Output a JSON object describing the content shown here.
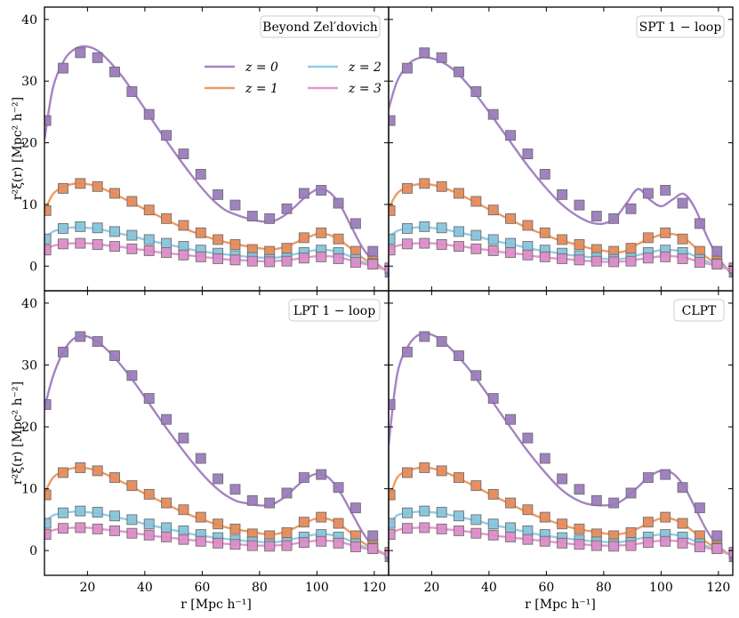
{
  "chart_data": {
    "type": "line",
    "layout": "2x2 panels with shared axes",
    "xlabel": "r [Mpc h⁻¹]",
    "ylabel": "r²ξ(r)  [Mpc² h⁻²]",
    "xlim": [
      5,
      125
    ],
    "ylim": [
      -4,
      42
    ],
    "xticks": [
      20,
      40,
      60,
      80,
      100,
      120
    ],
    "yticks": [
      0,
      10,
      20,
      30,
      40
    ],
    "legend": {
      "location": "upper-right of first panel",
      "ncol": 2,
      "entries": [
        {
          "label": "z = 0",
          "color": "#a582c4"
        },
        {
          "label": "z = 1",
          "color": "#ee9b62"
        },
        {
          "label": "z = 2",
          "color": "#91cde5"
        },
        {
          "label": "z = 3",
          "color": "#e297cf"
        }
      ]
    },
    "series_colors": [
      "#a582c4",
      "#ee9b62",
      "#91cde5",
      "#e297cf"
    ],
    "marker_colors": [
      "#9b7bbd",
      "#e58b5b",
      "#86c4dd",
      "#dd8cc8"
    ],
    "data_points": {
      "x": [
        5.5,
        11.5,
        17.5,
        23.5,
        29.5,
        35.5,
        41.5,
        47.5,
        53.5,
        59.5,
        65.5,
        71.5,
        77.5,
        83.5,
        89.5,
        95.5,
        101.5,
        107.5,
        113.5,
        119.5,
        125.5
      ],
      "series": [
        {
          "name": "z = 0",
          "y": [
            23.6,
            32.1,
            34.6,
            33.8,
            31.5,
            28.3,
            24.6,
            21.2,
            18.2,
            14.9,
            11.6,
            9.9,
            8.1,
            7.7,
            9.3,
            11.8,
            12.3,
            10.2,
            6.9,
            2.4,
            -1.0
          ]
        },
        {
          "name": "z = 1",
          "y": [
            9.0,
            12.6,
            13.4,
            12.9,
            11.8,
            10.5,
            9.1,
            7.7,
            6.6,
            5.4,
            4.3,
            3.5,
            2.7,
            2.4,
            2.9,
            4.6,
            5.4,
            4.4,
            2.4,
            0.8,
            -0.3
          ]
        },
        {
          "name": "z = 2",
          "y": [
            4.4,
            6.1,
            6.4,
            6.2,
            5.6,
            5.0,
            4.3,
            3.7,
            3.2,
            2.6,
            2.1,
            1.7,
            1.4,
            1.1,
            1.3,
            2.2,
            2.6,
            2.2,
            1.1,
            0.4,
            -0.3
          ]
        },
        {
          "name": "z = 3",
          "y": [
            2.6,
            3.6,
            3.7,
            3.5,
            3.2,
            2.8,
            2.5,
            2.2,
            1.8,
            1.5,
            1.2,
            1.0,
            0.8,
            0.7,
            0.8,
            1.3,
            1.5,
            1.2,
            0.6,
            0.3,
            -0.3
          ]
        }
      ]
    },
    "panels": [
      {
        "label": "Beyond Zel′dovich",
        "model_x": [
          5,
          8,
          12,
          16,
          20,
          24,
          28,
          32,
          36,
          40,
          44,
          48,
          52,
          56,
          60,
          64,
          68,
          72,
          76,
          80,
          84,
          88,
          92,
          96,
          100,
          104,
          108,
          112,
          116,
          120,
          125
        ],
        "model_series": [
          {
            "name": "z = 0",
            "y": [
              20.5,
              29.0,
              33.5,
              35.3,
              35.6,
              34.8,
              33.0,
              30.8,
              28.2,
              25.5,
              22.7,
              20.0,
              17.4,
              14.9,
              12.6,
              10.6,
              9.1,
              8.3,
              7.7,
              7.3,
              7.2,
              8.0,
              9.5,
              11.2,
              12.4,
              12.1,
              10.0,
              6.4,
              2.9,
              0.7,
              -1.0
            ]
          },
          {
            "name": "z = 1",
            "y": [
              8.8,
              11.7,
              12.9,
              13.4,
              13.3,
              12.8,
              12.0,
              11.1,
              10.2,
              9.2,
              8.3,
              7.4,
              6.5,
              5.7,
              5.0,
              4.4,
              3.9,
              3.5,
              3.2,
              2.9,
              2.7,
              3.0,
              3.7,
              4.5,
              5.2,
              5.1,
              4.2,
              2.8,
              1.3,
              0.3,
              -0.8
            ]
          },
          {
            "name": "z = 2",
            "y": [
              4.4,
              5.6,
              6.1,
              6.3,
              6.2,
              6.0,
              5.6,
              5.2,
              4.8,
              4.3,
              3.9,
              3.5,
              3.1,
              2.7,
              2.4,
              2.1,
              1.9,
              1.7,
              1.5,
              1.4,
              1.3,
              1.5,
              1.9,
              2.3,
              2.6,
              2.6,
              2.2,
              1.5,
              0.7,
              0.1,
              -0.8
            ]
          },
          {
            "name": "z = 3",
            "y": [
              2.6,
              3.3,
              3.6,
              3.7,
              3.7,
              3.5,
              3.3,
              3.1,
              2.8,
              2.6,
              2.3,
              2.1,
              1.9,
              1.7,
              1.5,
              1.3,
              1.1,
              1.0,
              0.9,
              0.8,
              0.8,
              0.9,
              1.1,
              1.4,
              1.6,
              1.6,
              1.4,
              0.9,
              0.4,
              0.0,
              -0.8
            ]
          }
        ]
      },
      {
        "label": "SPT 1 − loop",
        "model_x": [
          5,
          8,
          12,
          16,
          20,
          24,
          28,
          32,
          36,
          40,
          44,
          48,
          52,
          56,
          60,
          64,
          68,
          72,
          76,
          80,
          84,
          88,
          92,
          96,
          100,
          104,
          108,
          112,
          116,
          120,
          125
        ],
        "model_series": [
          {
            "name": "z = 0",
            "y": [
              25.5,
              30.0,
              32.8,
              33.8,
              33.7,
              33.0,
              31.7,
              29.8,
              27.5,
              25.0,
              22.4,
              19.8,
              17.2,
              14.8,
              12.6,
              10.6,
              9.0,
              7.8,
              7.0,
              6.9,
              7.8,
              10.2,
              12.5,
              10.8,
              9.7,
              10.8,
              11.7,
              9.2,
              4.8,
              1.3,
              -1.5
            ]
          },
          {
            "name": "z = 1",
            "y": [
              9.3,
              11.8,
              12.9,
              13.3,
              13.2,
              12.7,
              12.0,
              11.1,
              10.2,
              9.2,
              8.3,
              7.4,
              6.5,
              5.7,
              5.0,
              4.3,
              3.8,
              3.3,
              2.8,
              2.5,
              2.2,
              2.5,
              3.6,
              4.4,
              5.1,
              5.2,
              4.6,
              3.0,
              1.4,
              0.4,
              -0.8
            ]
          },
          {
            "name": "z = 2",
            "y": [
              4.6,
              5.7,
              6.1,
              6.3,
              6.2,
              6.0,
              5.6,
              5.2,
              4.8,
              4.3,
              3.9,
              3.5,
              3.1,
              2.7,
              2.4,
              2.1,
              1.8,
              1.6,
              1.4,
              1.2,
              1.1,
              1.3,
              1.8,
              2.2,
              2.6,
              2.6,
              2.3,
              1.6,
              0.8,
              0.2,
              -0.8
            ]
          },
          {
            "name": "z = 3",
            "y": [
              2.7,
              3.3,
              3.6,
              3.7,
              3.7,
              3.5,
              3.3,
              3.1,
              2.8,
              2.6,
              2.3,
              2.1,
              1.9,
              1.6,
              1.4,
              1.2,
              1.1,
              0.9,
              0.8,
              0.7,
              0.7,
              0.8,
              1.1,
              1.3,
              1.6,
              1.6,
              1.4,
              0.9,
              0.4,
              0.0,
              -0.8
            ]
          }
        ]
      },
      {
        "label": "LPT 1 − loop",
        "model_x": [
          5,
          8,
          12,
          16,
          20,
          24,
          28,
          32,
          36,
          40,
          44,
          48,
          52,
          56,
          60,
          64,
          68,
          72,
          76,
          80,
          84,
          88,
          92,
          96,
          100,
          104,
          108,
          112,
          116,
          120,
          125
        ],
        "model_series": [
          {
            "name": "z = 0",
            "y": [
              23.0,
              28.2,
              32.5,
              34.5,
              34.6,
              33.6,
              31.9,
              29.8,
              27.4,
              24.8,
              22.1,
              19.5,
              17.0,
              14.6,
              12.4,
              10.5,
              9.0,
              8.0,
              7.6,
              7.3,
              7.4,
              8.4,
              10.0,
              11.6,
              12.4,
              11.8,
              9.5,
              6.2,
              2.9,
              0.5,
              -1.0
            ]
          },
          {
            "name": "z = 1",
            "y": [
              9.2,
              11.8,
              12.9,
              13.4,
              13.3,
              12.8,
              12.0,
              11.1,
              10.2,
              9.2,
              8.3,
              7.4,
              6.5,
              5.7,
              5.0,
              4.4,
              3.8,
              3.4,
              3.1,
              2.8,
              2.6,
              2.9,
              3.6,
              4.5,
              5.2,
              5.1,
              4.2,
              2.8,
              1.3,
              0.3,
              -0.8
            ]
          },
          {
            "name": "z = 2",
            "y": [
              4.5,
              5.7,
              6.1,
              6.3,
              6.2,
              6.0,
              5.6,
              5.2,
              4.8,
              4.3,
              3.9,
              3.5,
              3.1,
              2.7,
              2.4,
              2.1,
              1.9,
              1.7,
              1.5,
              1.4,
              1.3,
              1.5,
              1.9,
              2.3,
              2.6,
              2.6,
              2.2,
              1.5,
              0.7,
              0.1,
              -0.8
            ]
          },
          {
            "name": "z = 3",
            "y": [
              2.6,
              3.3,
              3.6,
              3.7,
              3.7,
              3.5,
              3.3,
              3.1,
              2.8,
              2.6,
              2.3,
              2.1,
              1.9,
              1.7,
              1.5,
              1.3,
              1.1,
              1.0,
              0.9,
              0.8,
              0.8,
              0.9,
              1.1,
              1.4,
              1.6,
              1.6,
              1.4,
              0.9,
              0.4,
              0.0,
              -0.8
            ]
          }
        ]
      },
      {
        "label": "CLPT",
        "model_x": [
          5,
          8,
          12,
          16,
          20,
          24,
          28,
          32,
          36,
          40,
          44,
          48,
          52,
          56,
          60,
          64,
          68,
          72,
          76,
          80,
          84,
          88,
          92,
          96,
          100,
          104,
          108,
          112,
          116,
          120,
          125
        ],
        "model_series": [
          {
            "name": "z = 0",
            "y": [
              17.0,
              28.5,
              33.2,
              35.0,
              34.9,
              33.8,
              32.0,
              29.9,
              27.5,
              24.9,
              22.2,
              19.6,
              17.0,
              14.6,
              12.4,
              10.4,
              8.9,
              7.9,
              7.4,
              7.3,
              7.5,
              8.6,
              10.3,
              12.0,
              12.9,
              12.5,
              10.4,
              6.8,
              3.2,
              0.7,
              -1.0
            ]
          },
          {
            "name": "z = 1",
            "y": [
              8.0,
              11.8,
              12.9,
              13.4,
              13.3,
              12.8,
              12.0,
              11.1,
              10.2,
              9.2,
              8.3,
              7.4,
              6.5,
              5.7,
              5.0,
              4.4,
              3.8,
              3.4,
              3.1,
              2.8,
              2.6,
              2.9,
              3.6,
              4.5,
              5.2,
              5.1,
              4.2,
              2.8,
              1.3,
              0.3,
              -0.8
            ]
          },
          {
            "name": "z = 2",
            "y": [
              4.0,
              5.7,
              6.1,
              6.3,
              6.2,
              6.0,
              5.6,
              5.2,
              4.8,
              4.3,
              3.9,
              3.5,
              3.1,
              2.7,
              2.4,
              2.1,
              1.9,
              1.7,
              1.5,
              1.4,
              1.3,
              1.5,
              1.9,
              2.3,
              2.6,
              2.6,
              2.2,
              1.5,
              0.7,
              0.1,
              -0.8
            ]
          },
          {
            "name": "z = 3",
            "y": [
              2.3,
              3.3,
              3.6,
              3.7,
              3.7,
              3.5,
              3.3,
              3.1,
              2.8,
              2.6,
              2.3,
              2.1,
              1.9,
              1.7,
              1.5,
              1.3,
              1.1,
              1.0,
              0.9,
              0.8,
              0.8,
              0.9,
              1.1,
              1.4,
              1.6,
              1.6,
              1.4,
              0.9,
              0.4,
              0.0,
              -0.8
            ]
          }
        ]
      }
    ]
  }
}
